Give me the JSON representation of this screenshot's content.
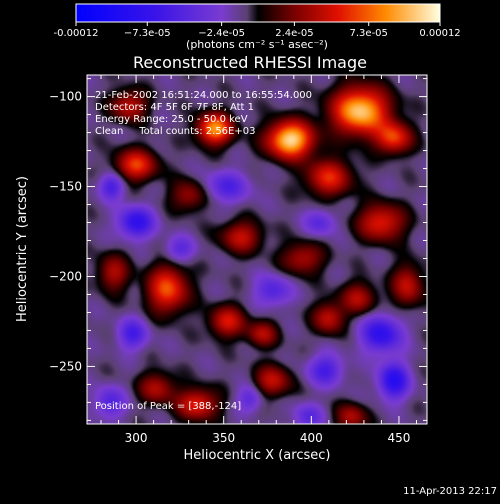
{
  "chart_data": {
    "type": "heatmap",
    "title": "Reconstructed RHESSI Image",
    "xlabel": "Heliocentric X (arcsec)",
    "ylabel": "Heliocentric Y (arcsec)",
    "xlim": [
      272,
      466
    ],
    "ylim": [
      -282,
      -88
    ],
    "x_ticks": [
      300,
      350,
      400,
      450
    ],
    "y_ticks": [
      -100,
      -150,
      -200,
      -250
    ],
    "colorbar": {
      "label": "(photons cm⁻² s⁻¹ asec⁻²)",
      "range": [
        -0.00012,
        0.00012
      ],
      "tick_labels": [
        "-0.00012",
        "−7.3e-05",
        "−2.4e-05",
        "2.4e-05",
        "7.3e-05",
        "0.00012"
      ],
      "tick_values": [
        -0.00012,
        -7.3e-05,
        -2.4e-05,
        2.4e-05,
        7.3e-05,
        0.00012
      ]
    },
    "annotations": [
      "21-Feb-2002 16:51:24.000 to 16:55:54.000",
      "Detectors: 4F 5F 6F 7F 8F, Att 1",
      "Energy Range: 25.0 - 50.0 keV",
      "Clean     Total counts: 2.56E+03"
    ],
    "peak_label": "Position of Peak = [388,-124]",
    "peak": {
      "x": 388,
      "y": -124
    },
    "blobs": [
      {
        "x": 388,
        "y": -124,
        "sx": 9,
        "sy": 7,
        "a": 1.0
      },
      {
        "x": 428,
        "y": -108,
        "sx": 11,
        "sy": 9,
        "a": 0.95
      },
      {
        "x": 345,
        "y": -118,
        "sx": 7,
        "sy": 6,
        "a": 0.8
      },
      {
        "x": 410,
        "y": -145,
        "sx": 9,
        "sy": 7,
        "a": 0.55
      },
      {
        "x": 447,
        "y": -123,
        "sx": 7,
        "sy": 6,
        "a": 0.6
      },
      {
        "x": 300,
        "y": -138,
        "sx": 8,
        "sy": 6,
        "a": 0.6
      },
      {
        "x": 296,
        "y": -105,
        "sx": 7,
        "sy": 6,
        "a": 0.45
      },
      {
        "x": 330,
        "y": -155,
        "sx": 7,
        "sy": 6,
        "a": 0.35
      },
      {
        "x": 360,
        "y": -178,
        "sx": 8,
        "sy": 6,
        "a": 0.45
      },
      {
        "x": 440,
        "y": -170,
        "sx": 9,
        "sy": 7,
        "a": 0.55
      },
      {
        "x": 455,
        "y": -205,
        "sx": 6,
        "sy": 8,
        "a": 0.45
      },
      {
        "x": 395,
        "y": -190,
        "sx": 8,
        "sy": 6,
        "a": 0.4
      },
      {
        "x": 318,
        "y": -207,
        "sx": 8,
        "sy": 9,
        "a": 0.65
      },
      {
        "x": 287,
        "y": -198,
        "sx": 6,
        "sy": 7,
        "a": 0.4
      },
      {
        "x": 352,
        "y": -225,
        "sx": 7,
        "sy": 6,
        "a": 0.5
      },
      {
        "x": 372,
        "y": -232,
        "sx": 6,
        "sy": 5,
        "a": 0.4
      },
      {
        "x": 410,
        "y": -223,
        "sx": 6,
        "sy": 6,
        "a": 0.45
      },
      {
        "x": 427,
        "y": -212,
        "sx": 7,
        "sy": 6,
        "a": 0.4
      },
      {
        "x": 312,
        "y": -262,
        "sx": 7,
        "sy": 6,
        "a": 0.4
      },
      {
        "x": 335,
        "y": -271,
        "sx": 8,
        "sy": 6,
        "a": 0.55
      },
      {
        "x": 378,
        "y": -258,
        "sx": 7,
        "sy": 6,
        "a": 0.45
      },
      {
        "x": 423,
        "y": -278,
        "sx": 6,
        "sy": 5,
        "a": 0.4
      },
      {
        "x": 300,
        "y": -170,
        "sx": 7,
        "sy": 6,
        "a": -0.55
      },
      {
        "x": 286,
        "y": -150,
        "sx": 5,
        "sy": 5,
        "a": -0.4
      },
      {
        "x": 352,
        "y": -150,
        "sx": 9,
        "sy": 6,
        "a": -0.35
      },
      {
        "x": 405,
        "y": -170,
        "sx": 6,
        "sy": 5,
        "a": -0.3
      },
      {
        "x": 378,
        "y": -208,
        "sx": 7,
        "sy": 6,
        "a": -0.35
      },
      {
        "x": 325,
        "y": -185,
        "sx": 6,
        "sy": 5,
        "a": -0.3
      },
      {
        "x": 440,
        "y": -232,
        "sx": 8,
        "sy": 7,
        "a": -0.55
      },
      {
        "x": 447,
        "y": -258,
        "sx": 6,
        "sy": 7,
        "a": -0.6
      },
      {
        "x": 408,
        "y": -252,
        "sx": 7,
        "sy": 6,
        "a": -0.4
      },
      {
        "x": 298,
        "y": -232,
        "sx": 6,
        "sy": 6,
        "a": -0.4
      },
      {
        "x": 285,
        "y": -270,
        "sx": 6,
        "sy": 6,
        "a": -0.35
      },
      {
        "x": 365,
        "y": -268,
        "sx": 5,
        "sy": 5,
        "a": -0.3
      },
      {
        "x": 398,
        "y": -278,
        "sx": 6,
        "sy": 5,
        "a": -0.3
      }
    ]
  },
  "footer": {
    "timestamp": "11-Apr-2013 22:17"
  }
}
